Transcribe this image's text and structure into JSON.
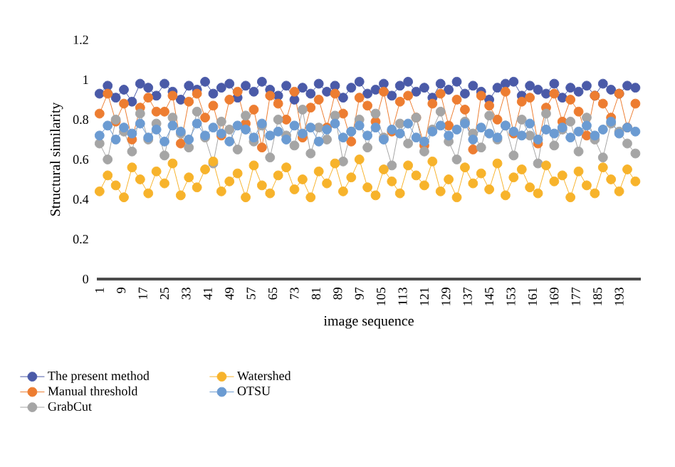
{
  "chart_data": {
    "type": "line",
    "xlabel": "image sequence",
    "ylabel": "Structural similarity",
    "x": [
      1,
      4,
      7,
      10,
      13,
      16,
      19,
      22,
      25,
      28,
      31,
      34,
      37,
      40,
      43,
      46,
      49,
      52,
      55,
      58,
      61,
      64,
      67,
      70,
      73,
      76,
      79,
      82,
      85,
      88,
      91,
      94,
      97,
      100,
      103,
      106,
      109,
      112,
      115,
      118,
      121,
      124,
      127,
      130,
      133,
      136,
      139,
      142,
      145,
      148,
      151,
      154,
      157,
      160,
      163,
      166,
      169,
      172,
      175,
      178,
      181,
      184,
      187,
      190,
      193,
      196,
      199
    ],
    "xlim": [
      0,
      201
    ],
    "xticks": [
      1,
      9,
      17,
      25,
      33,
      41,
      49,
      57,
      65,
      73,
      81,
      89,
      97,
      105,
      113,
      121,
      129,
      137,
      145,
      153,
      161,
      169,
      177,
      185,
      193
    ],
    "ylim": [
      0,
      1.2
    ],
    "yticks": [
      0,
      0.2,
      0.4,
      0.6,
      0.8,
      1,
      1.2
    ],
    "marker": "circle",
    "line_style": "solid",
    "legend": "bottom",
    "series": [
      {
        "name": "The present method",
        "color": "#4a5aa8",
        "values": [
          0.93,
          0.97,
          0.91,
          0.95,
          0.89,
          0.98,
          0.96,
          0.92,
          0.98,
          0.94,
          0.9,
          0.97,
          0.95,
          0.99,
          0.93,
          0.96,
          0.98,
          0.91,
          0.97,
          0.94,
          0.99,
          0.95,
          0.92,
          0.97,
          0.9,
          0.96,
          0.93,
          0.98,
          0.94,
          0.97,
          0.91,
          0.96,
          0.99,
          0.93,
          0.95,
          0.98,
          0.92,
          0.97,
          0.99,
          0.94,
          0.96,
          0.91,
          0.98,
          0.95,
          0.99,
          0.93,
          0.97,
          0.94,
          0.9,
          0.96,
          0.98,
          0.99,
          0.92,
          0.97,
          0.95,
          0.93,
          0.98,
          0.91,
          0.96,
          0.94,
          0.97,
          0.92,
          0.98,
          0.95,
          0.93,
          0.97,
          0.96
        ]
      },
      {
        "name": "Manual threshold",
        "color": "#ed7d31",
        "values": [
          0.83,
          0.93,
          0.79,
          0.88,
          0.7,
          0.86,
          0.91,
          0.84,
          0.84,
          0.92,
          0.68,
          0.89,
          0.93,
          0.81,
          0.87,
          0.72,
          0.9,
          0.94,
          0.78,
          0.85,
          0.66,
          0.92,
          0.88,
          0.8,
          0.94,
          0.71,
          0.86,
          0.9,
          0.76,
          0.93,
          0.83,
          0.69,
          0.91,
          0.87,
          0.79,
          0.94,
          0.74,
          0.89,
          0.92,
          0.81,
          0.67,
          0.88,
          0.93,
          0.77,
          0.9,
          0.85,
          0.65,
          0.92,
          0.87,
          0.8,
          0.94,
          0.73,
          0.89,
          0.91,
          0.68,
          0.86,
          0.93,
          0.79,
          0.9,
          0.84,
          0.72,
          0.92,
          0.88,
          0.81,
          0.93,
          0.76,
          0.88
        ]
      },
      {
        "name": "GrabCut",
        "color": "#a5a5a5",
        "values": [
          0.68,
          0.6,
          0.8,
          0.74,
          0.64,
          0.83,
          0.7,
          0.78,
          0.62,
          0.81,
          0.73,
          0.66,
          0.84,
          0.71,
          0.58,
          0.79,
          0.75,
          0.65,
          0.82,
          0.69,
          0.77,
          0.61,
          0.8,
          0.72,
          0.67,
          0.85,
          0.63,
          0.76,
          0.7,
          0.82,
          0.59,
          0.74,
          0.8,
          0.66,
          0.83,
          0.71,
          0.57,
          0.78,
          0.68,
          0.81,
          0.64,
          0.75,
          0.84,
          0.69,
          0.6,
          0.79,
          0.73,
          0.66,
          0.82,
          0.7,
          0.77,
          0.62,
          0.8,
          0.72,
          0.58,
          0.83,
          0.67,
          0.75,
          0.79,
          0.64,
          0.81,
          0.7,
          0.61,
          0.78,
          0.74,
          0.68,
          0.63
        ]
      },
      {
        "name": "Watershed",
        "color": "#f7b32b",
        "values": [
          0.44,
          0.52,
          0.47,
          0.41,
          0.56,
          0.5,
          0.43,
          0.54,
          0.48,
          0.58,
          0.42,
          0.51,
          0.46,
          0.55,
          0.59,
          0.44,
          0.49,
          0.53,
          0.41,
          0.57,
          0.47,
          0.43,
          0.52,
          0.56,
          0.45,
          0.5,
          0.41,
          0.54,
          0.48,
          0.58,
          0.44,
          0.51,
          0.6,
          0.46,
          0.42,
          0.55,
          0.49,
          0.43,
          0.57,
          0.52,
          0.47,
          0.59,
          0.44,
          0.5,
          0.41,
          0.56,
          0.48,
          0.53,
          0.45,
          0.58,
          0.42,
          0.51,
          0.55,
          0.46,
          0.43,
          0.57,
          0.49,
          0.52,
          0.41,
          0.54,
          0.47,
          0.43,
          0.56,
          0.5,
          0.44,
          0.55,
          0.49
        ]
      },
      {
        "name": "OTSU",
        "color": "#6b9bd2",
        "values": [
          0.72,
          0.77,
          0.7,
          0.76,
          0.73,
          0.78,
          0.71,
          0.75,
          0.69,
          0.77,
          0.74,
          0.7,
          0.78,
          0.72,
          0.76,
          0.73,
          0.69,
          0.77,
          0.75,
          0.71,
          0.78,
          0.72,
          0.74,
          0.7,
          0.77,
          0.73,
          0.76,
          0.69,
          0.75,
          0.78,
          0.71,
          0.74,
          0.77,
          0.72,
          0.76,
          0.7,
          0.75,
          0.73,
          0.78,
          0.71,
          0.69,
          0.74,
          0.77,
          0.72,
          0.75,
          0.78,
          0.7,
          0.76,
          0.73,
          0.71,
          0.77,
          0.74,
          0.72,
          0.78,
          0.7,
          0.75,
          0.73,
          0.76,
          0.71,
          0.74,
          0.77,
          0.72,
          0.75,
          0.79,
          0.73,
          0.76,
          0.74
        ]
      }
    ]
  }
}
